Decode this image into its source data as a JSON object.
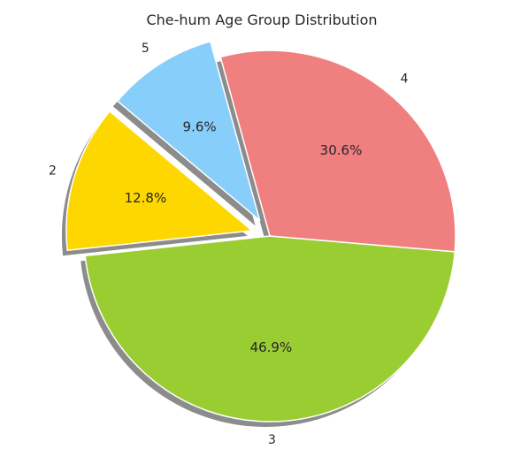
{
  "chart_data": {
    "type": "pie",
    "title": "Che-hum Age Group Distribution",
    "categories": [
      "2",
      "3",
      "4",
      "5"
    ],
    "values": [
      12.8,
      46.9,
      30.6,
      9.6
    ],
    "labels_pct": [
      "12.8%",
      "46.9%",
      "30.6%",
      "9.6%"
    ],
    "colors": [
      "#FFD700",
      "#9ACD32",
      "#F08080",
      "#87CEFA"
    ],
    "exploded": [
      "2",
      "5"
    ],
    "shadow": true,
    "start_angle_deg": 140,
    "direction": "counterclockwise"
  }
}
